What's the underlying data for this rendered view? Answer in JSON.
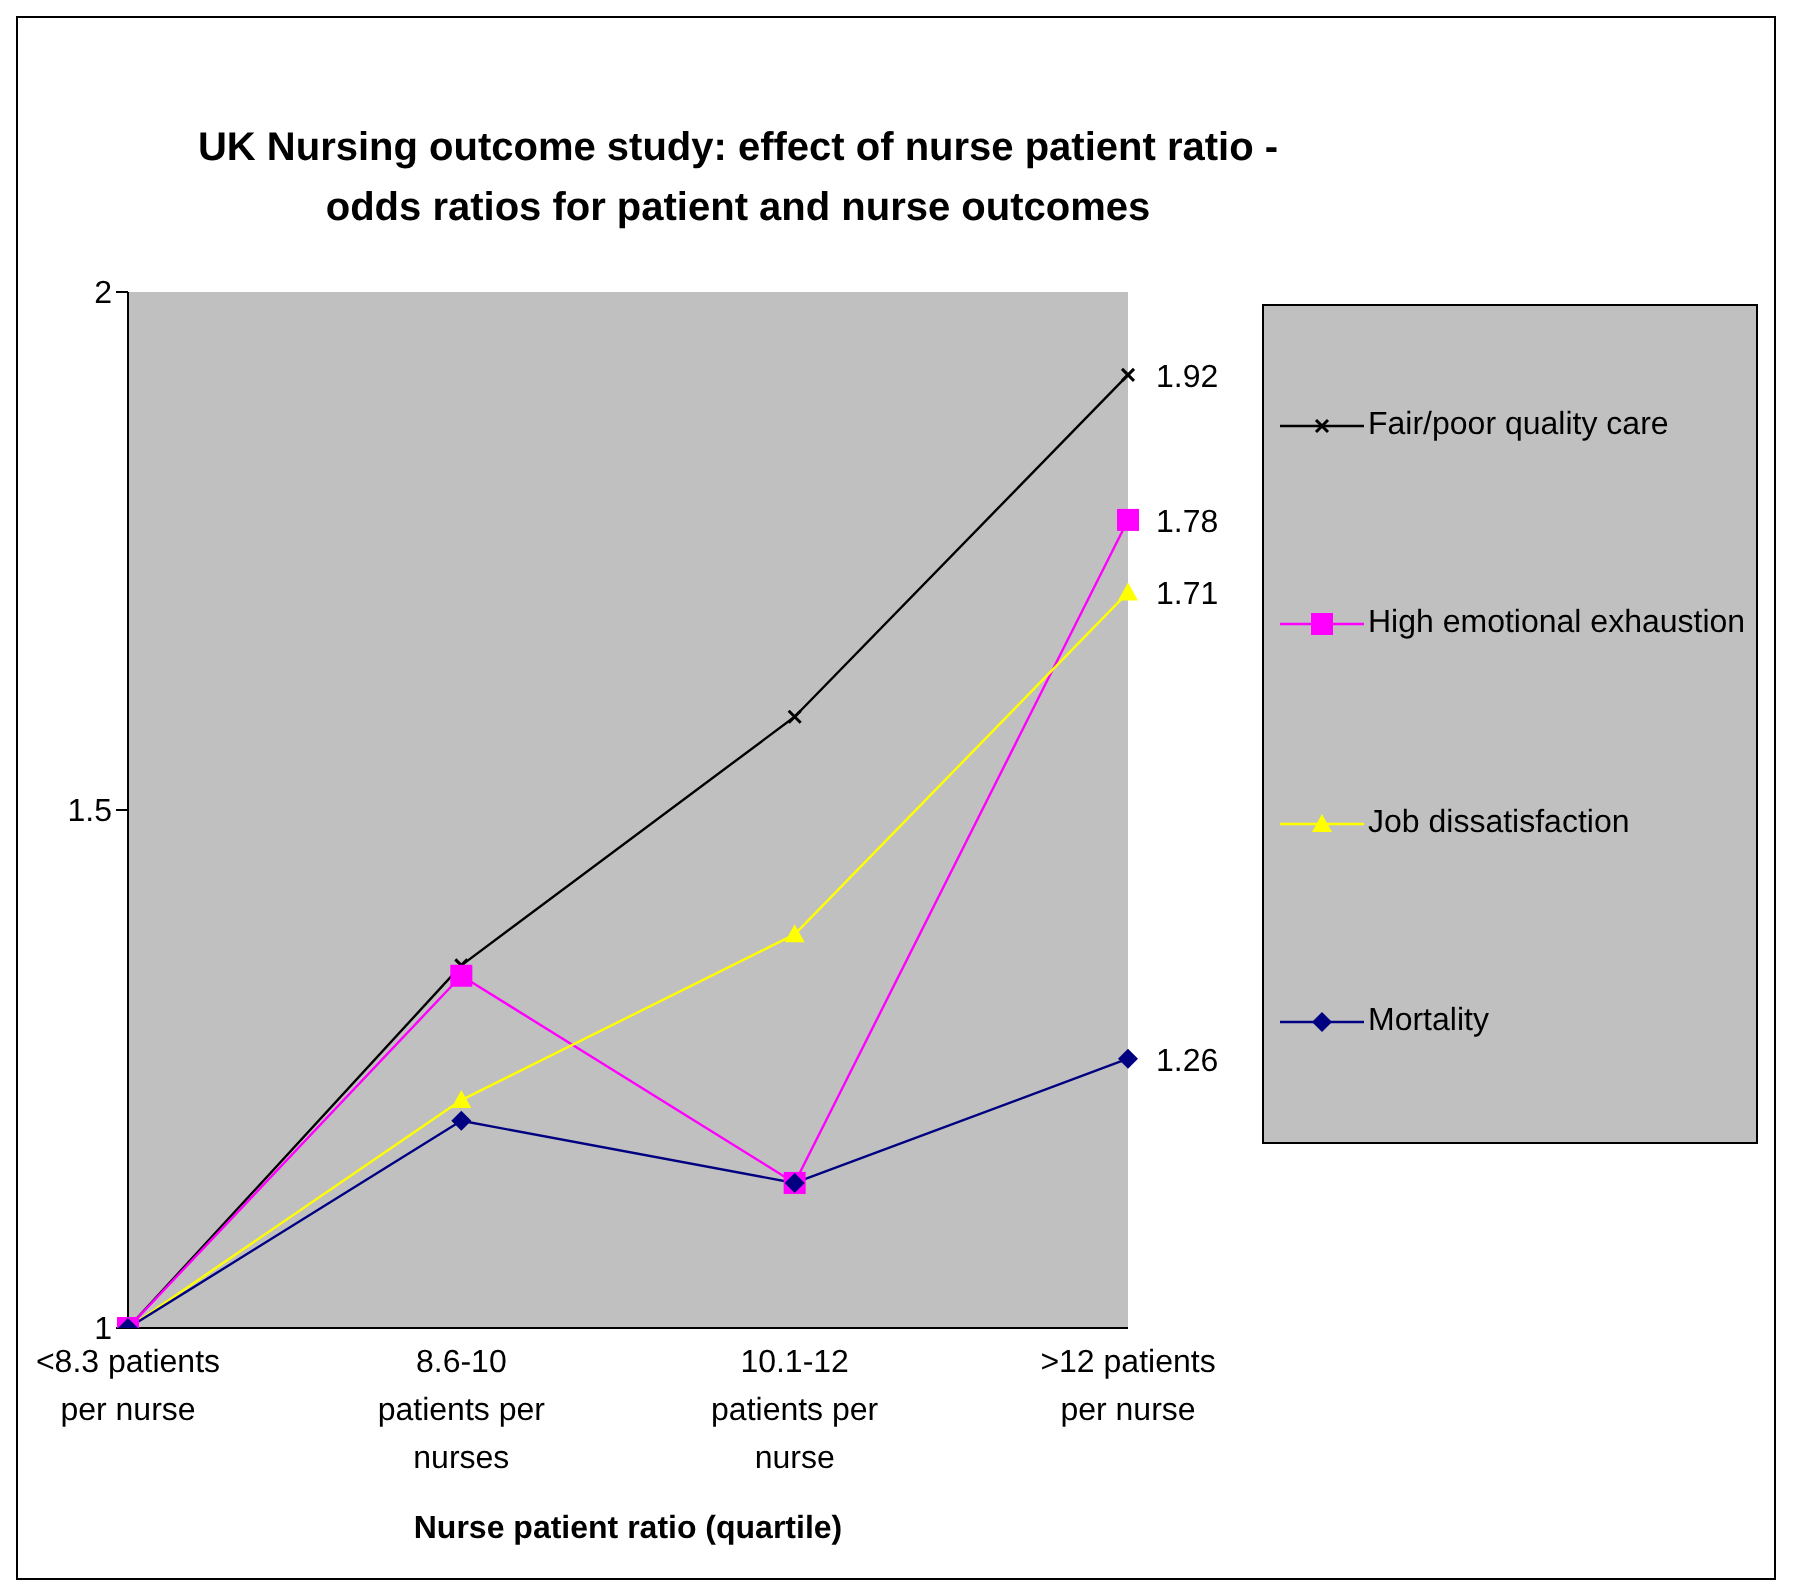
{
  "chart_data": {
    "type": "line",
    "title": "UK Nursing outcome study: effect of nurse patient ratio - odds ratios for patient and nurse outcomes",
    "xlabel": "Nurse patient ratio (quartile)",
    "categories": [
      "<8.3 patients per nurse",
      "8.6-10 patients per nurses",
      "10.1-12 patients per nurse",
      ">12 patients per nurse"
    ],
    "series": [
      {
        "name": "Fair/poor quality care",
        "color": "#000000",
        "marker": "cross",
        "values": [
          1,
          1.35,
          1.59,
          1.92
        ],
        "value_labels": [
          null,
          null,
          null,
          "1.92"
        ]
      },
      {
        "name": "High emotional exhaustion",
        "color": "#ff00ff",
        "marker": "square",
        "values": [
          1,
          1.34,
          1.14,
          1.78
        ],
        "value_labels": [
          null,
          null,
          null,
          "1.78"
        ]
      },
      {
        "name": "Job dissatisfaction",
        "color": "#ffff00",
        "marker": "triangle",
        "values": [
          1,
          1.22,
          1.38,
          1.71
        ],
        "value_labels": [
          null,
          null,
          null,
          "1.71"
        ]
      },
      {
        "name": "Mortality",
        "color": "#000080",
        "marker": "diamond",
        "values": [
          1,
          1.2,
          1.14,
          1.26
        ],
        "value_labels": [
          null,
          null,
          null,
          "1.26"
        ]
      }
    ],
    "ylim": [
      1,
      2
    ],
    "yticks": [
      1,
      1.5,
      2
    ],
    "grid": false,
    "legend": "right",
    "line_style": "solid"
  }
}
